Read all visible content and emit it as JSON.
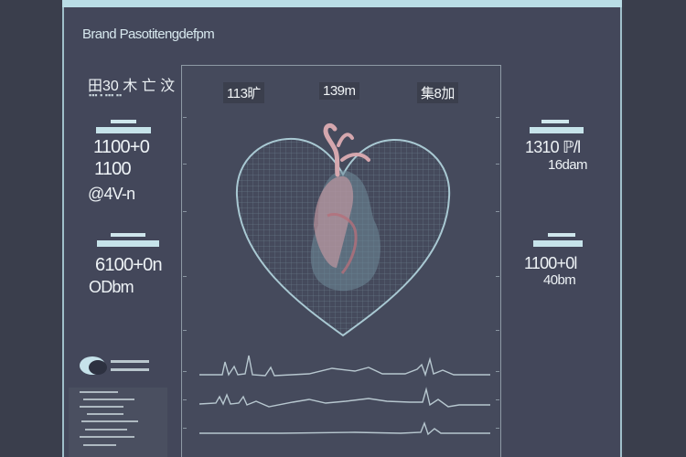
{
  "window": {
    "title": "Brand Pasotitengdefpm"
  },
  "left_panel": {
    "header": "田30 木 亡 汶",
    "header_sub": "▪▪▪ ▪ ▪▪▪ ▪▪",
    "block1": {
      "caption": "",
      "value_a": "1100+0",
      "value_b": "1100",
      "value_c": "@4V-n"
    },
    "block2": {
      "caption": "",
      "value_a": "6100+0n",
      "value_b": "ODbm"
    }
  },
  "right_panel": {
    "block1": {
      "caption": "",
      "value_a": "1310 ℙ/l",
      "value_b": "16dam"
    },
    "block2": {
      "caption": "",
      "value_a": "1100+0l",
      "value_b": "40bm"
    }
  },
  "monitor": {
    "labels": [
      "113旷",
      "139m",
      "集8加"
    ]
  },
  "colors": {
    "accent": "#b9dde6",
    "background": "#3c404e",
    "panel": "#43475a",
    "heart_outline": "#a9c9d3",
    "heart_tissue": "#c49aa3",
    "waveform": "#b7c7cf"
  },
  "icons": {
    "legend": "bubble-icon"
  }
}
